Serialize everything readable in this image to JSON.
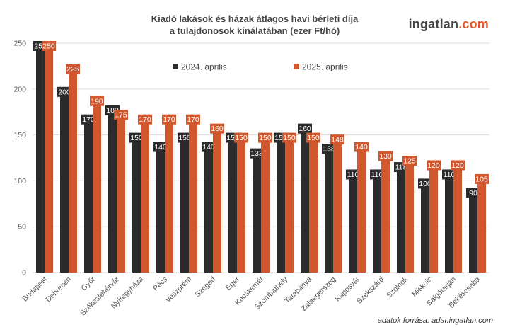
{
  "header": {
    "title_line1": "Kiadó lakások és házak átlagos havi bérleti díja",
    "title_line2": "a tulajdonosok kínálatában (ezer Ft/hó)",
    "brand_main": "ingatlan",
    "brand_accent": ".com"
  },
  "footer": {
    "source": "adatok forrása: adat.ingatlan.com"
  },
  "colors": {
    "series_2024": "#2b2b2b",
    "series_2025": "#d1572e",
    "grid": "#dddddd",
    "brand_accent": "#e8552a"
  },
  "chart_data": {
    "type": "bar",
    "title": "Kiadó lakások és házak átlagos havi bérleti díja a tulajdonosok kínálatában (ezer Ft/hó)",
    "xlabel": "",
    "ylabel": "",
    "ylim": [
      0,
      250
    ],
    "yticks": [
      0,
      50,
      100,
      150,
      200,
      250
    ],
    "grid": true,
    "legend": "top-center",
    "categories": [
      "Budapest",
      "Debrecen",
      "Győr",
      "Székesfehérvár",
      "Nyíregyháza",
      "Pécs",
      "Veszprém",
      "Szeged",
      "Eger",
      "Kecskemét",
      "Szombathely",
      "Tatabánya",
      "Zalaegerszeg",
      "Kaposvár",
      "Szekszárd",
      "Szolnok",
      "Miskolc",
      "Salgótarján",
      "Békéscsaba"
    ],
    "series": [
      {
        "name": "2024. április",
        "values": [
          250,
          200,
          170,
          180,
          150,
          140,
          150,
          140,
          150,
          133,
          150,
          160,
          138,
          110,
          110,
          118,
          100,
          110,
          90
        ]
      },
      {
        "name": "2025. április",
        "values": [
          250,
          225,
          190,
          175,
          170,
          170,
          170,
          160,
          150,
          150,
          150,
          150,
          148,
          140,
          130,
          125,
          120,
          120,
          105
        ]
      }
    ]
  }
}
